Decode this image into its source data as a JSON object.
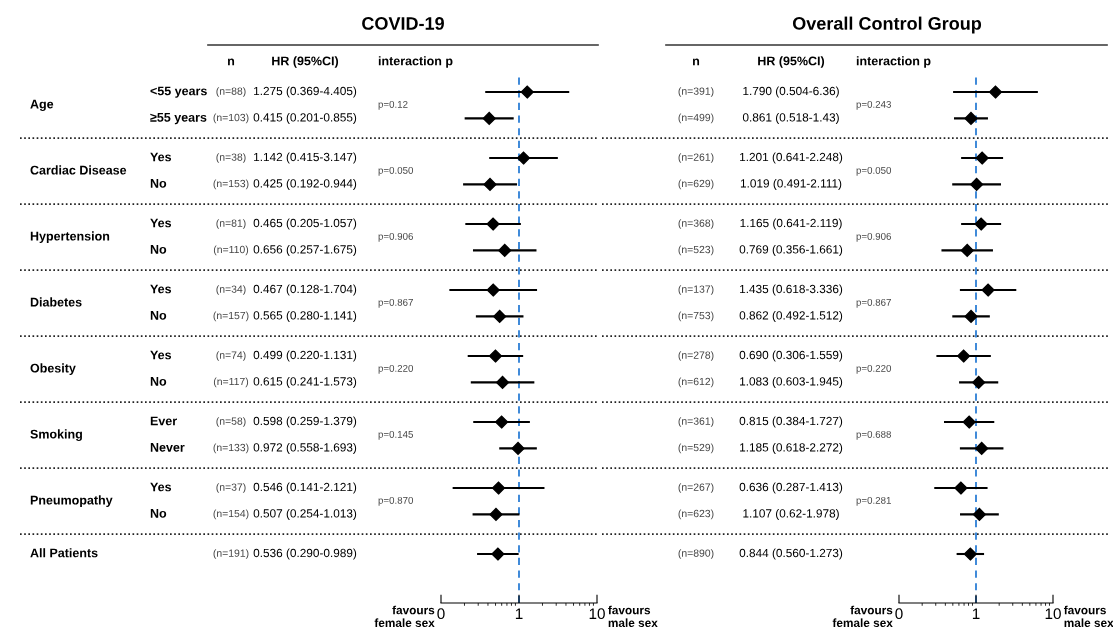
{
  "chart_data": [
    {
      "type": "scatter",
      "orientation": "horizontal",
      "title": "COVID-19",
      "color": "#000000",
      "marker": "diamond",
      "log": "x",
      "grid": false,
      "tick_labels": "x",
      "categories": [
        "<55 years",
        "≥55 years",
        "Yes",
        "No",
        "Yes",
        "No",
        "Yes",
        "No",
        "Yes",
        "No",
        "Ever",
        "Never",
        "Yes",
        "No",
        null
      ],
      "values": [
        1.275,
        0.415,
        1.142,
        0.425,
        0.465,
        0.656,
        0.467,
        0.565,
        0.499,
        0.615,
        0.598,
        0.972,
        0.546,
        0.507,
        0.536
      ],
      "errors": [
        [
          0.369,
          4.405
        ],
        [
          0.201,
          0.855
        ],
        [
          0.415,
          3.147
        ],
        [
          0.192,
          0.944
        ],
        [
          0.205,
          1.057
        ],
        [
          0.257,
          1.675
        ],
        [
          0.128,
          1.704
        ],
        [
          0.28,
          1.141
        ],
        [
          0.22,
          1.131
        ],
        [
          0.241,
          1.573
        ],
        [
          0.259,
          1.379
        ],
        [
          0.558,
          1.693
        ],
        [
          0.141,
          2.121
        ],
        [
          0.254,
          1.013
        ],
        [
          0.29,
          0.989
        ]
      ],
      "value_labels": [
        "1.275 (0.369-4.405)",
        "0.415 (0.201-0.855)",
        "1.142 (0.415-3.147)",
        "0.425 (0.192-0.944)",
        "0.465 (0.205-1.057)",
        "0.656 (0.257-1.675)",
        "0.467 (0.128-1.704)",
        "0.565 (0.280-1.141)",
        "0.499 (0.220-1.131)",
        "0.615 (0.241-1.573)",
        "0.598 (0.259-1.379)",
        "0.972 (0.558-1.693)",
        "0.546 (0.141-2.121)",
        "0.507 (0.254-1.013)",
        "0.536 (0.290-0.989)"
      ],
      "xlim": [
        0.1,
        10
      ],
      "xticks": [
        {
          "value": 0.1,
          "label": "0"
        },
        1,
        10
      ],
      "ref_lines": [
        {
          "axis": "x",
          "value": 1,
          "color": "#2e7fd6",
          "line_style": "dashed"
        }
      ],
      "annotations": [
        "n",
        "HR (95%CI)",
        "interaction p",
        "(n=88)",
        "(n=103)",
        "(n=38)",
        "(n=153)",
        "(n=81)",
        "(n=110)",
        "(n=34)",
        "(n=157)",
        "(n=74)",
        "(n=117)",
        "(n=58)",
        "(n=133)",
        "(n=37)",
        "(n=154)",
        "(n=191)",
        "p=0.12",
        "p=0.050",
        "p=0.906",
        "p=0.867",
        "p=0.220",
        "p=0.145",
        "p=0.870",
        "Age",
        "Cardiac Disease",
        "Hypertension",
        "Diabetes",
        "Obesity",
        "Smoking",
        "Pneumopathy",
        "All Patients",
        "favours\nfemale sex",
        "favours\nmale sex"
      ]
    },
    {
      "type": "scatter",
      "orientation": "horizontal",
      "title": "Overall Control Group",
      "color": "#000000",
      "marker": "diamond",
      "log": "x",
      "grid": false,
      "tick_labels": "x",
      "categories": [
        null,
        null,
        null,
        null,
        null,
        null,
        null,
        null,
        null,
        null,
        null,
        null,
        null,
        null,
        null
      ],
      "values": [
        1.79,
        0.861,
        1.201,
        1.019,
        1.165,
        0.769,
        1.435,
        0.862,
        0.69,
        1.083,
        0.815,
        1.185,
        0.636,
        1.107,
        0.844
      ],
      "errors": [
        [
          0.504,
          6.36
        ],
        [
          0.518,
          1.43
        ],
        [
          0.641,
          2.248
        ],
        [
          0.491,
          2.111
        ],
        [
          0.641,
          2.119
        ],
        [
          0.356,
          1.661
        ],
        [
          0.618,
          3.336
        ],
        [
          0.492,
          1.512
        ],
        [
          0.306,
          1.559
        ],
        [
          0.603,
          1.945
        ],
        [
          0.384,
          1.727
        ],
        [
          0.618,
          2.272
        ],
        [
          0.287,
          1.413
        ],
        [
          0.62,
          1.978
        ],
        [
          0.56,
          1.273
        ]
      ],
      "value_labels": [
        "1.790 (0.504-6.36)",
        "0.861 (0.518-1.43)",
        "1.201 (0.641-2.248)",
        "1.019 (0.491-2.111)",
        "1.165 (0.641-2.119)",
        "0.769 (0.356-1.661)",
        "1.435 (0.618-3.336)",
        "0.862 (0.492-1.512)",
        "0.690 (0.306-1.559)",
        "1.083 (0.603-1.945)",
        "0.815 (0.384-1.727)",
        "1.185 (0.618-2.272)",
        "0.636 (0.287-1.413)",
        "1.107 (0.62-1.978)",
        "0.844 (0.560-1.273)"
      ],
      "xlim": [
        0.1,
        10
      ],
      "xticks": [
        {
          "value": 0.1,
          "label": "0"
        },
        1,
        10
      ],
      "ref_lines": [
        {
          "axis": "x",
          "value": 1,
          "color": "#2e7fd6",
          "line_style": "dashed"
        }
      ],
      "annotations": [
        "n",
        "HR (95%CI)",
        "interaction p",
        "(n=391)",
        "(n=499)",
        "(n=261)",
        "(n=629)",
        "(n=368)",
        "(n=523)",
        "(n=137)",
        "(n=753)",
        "(n=278)",
        "(n=612)",
        "(n=361)",
        "(n=529)",
        "(n=267)",
        "(n=623)",
        "(n=890)",
        "p=0.243",
        "p=0.050",
        "p=0.906",
        "p=0.867",
        "p=0.220",
        "p=0.688",
        "p=0.281",
        "favours\nfemale sex",
        "favours\nmale sex"
      ]
    }
  ]
}
